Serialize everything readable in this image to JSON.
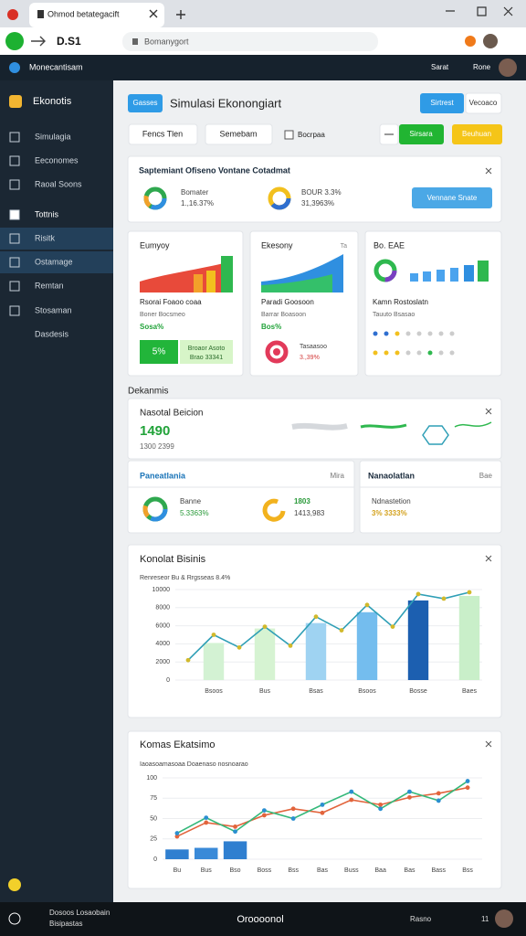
{
  "browser": {
    "tab_title": "Ohmod betategacift",
    "nav_label": "D.S1",
    "address": "Bomanygort"
  },
  "app_header": {
    "brand": "Monecantisam",
    "user_actions": [
      "Sarat",
      "Rone"
    ]
  },
  "sidebar": {
    "title": "Ekonotis",
    "items": [
      "Simulagia",
      "Eeconomes",
      "Raoal Soons",
      "Tottnis",
      "Risitk",
      "Ostamage",
      "Remtan",
      "Stosaman",
      "Dasdesis"
    ]
  },
  "page_header": {
    "badge": "Gasses",
    "title": "Simulasi Ekonongiart",
    "actions": [
      "Sirtrest",
      "Vecoaco"
    ]
  },
  "toolbar": {
    "buttons": [
      "Fencs Tlen",
      "Semebam"
    ],
    "checkbox": "Bocrpaa",
    "primary": "Sirsara",
    "secondary": "Beuhuan"
  },
  "summary_card": {
    "title": "Saptemiant Ofiseno Vontane Cotadmat",
    "items": [
      {
        "label": "Bomater",
        "value": "1.,16.37%"
      },
      {
        "label": "BOUR 3.3%",
        "value": "31,3963%"
      }
    ],
    "button": "Vennane Snate"
  },
  "mini_cards": [
    {
      "title": "Eumyoy",
      "lines": [
        "Rsorai Foaoo coaa",
        "Boner Bocsmeo",
        "Sosa%"
      ],
      "badge": "5%",
      "note": [
        "Broaor Asoto",
        "Brao 33341"
      ]
    },
    {
      "title": "Ekesony",
      "tag": "Ta",
      "lines": [
        "Paradi Goosoon",
        "Barrar Boasoon",
        "Bos%"
      ],
      "note": [
        "Tasaasoo",
        "3.,39%"
      ]
    },
    {
      "title": "Bo. EAE",
      "lines": [
        "Kamn Rostoslatn",
        "Tauuto Bsasao"
      ]
    }
  ],
  "section_label": "Dekanmis",
  "stat_card": {
    "title": "Nasotal Beicion",
    "value": "1490",
    "sub": "1300 2399"
  },
  "split_cards": [
    {
      "title": "Paneatlania",
      "tag": "Mira",
      "items": [
        {
          "label": "Banne",
          "value": "5.3363%"
        },
        {
          "label": "1803",
          "value": "1413,983"
        }
      ]
    },
    {
      "title": "Nanaolatlan",
      "tag": "Bae",
      "items": [
        {
          "label": "Ndnastetion",
          "value": "3% 3333%"
        }
      ]
    }
  ],
  "chart_data": [
    {
      "type": "bar",
      "title": "Konolat Bisinis",
      "subtitle": "Renreseor Bu & Rrgsseas 8.4%",
      "categories": [
        null,
        "Bsoos",
        null,
        "Bus",
        null,
        "Bsas",
        null,
        "Bsoos",
        null,
        "Bosse",
        null,
        "Baes"
      ],
      "series": [
        {
          "kind": "bar",
          "colors": [
            null,
            "#d3f2d3",
            null,
            "#d6f3d2",
            null,
            "#9fd3f2",
            null,
            "#74bdee",
            null,
            "#1c5fb0",
            null,
            "#c9efc9"
          ],
          "values": [
            null,
            4100,
            null,
            5700,
            null,
            6300,
            null,
            7500,
            null,
            8800,
            null,
            9300
          ]
        },
        {
          "kind": "line",
          "color": "#2f9fb6",
          "marker_color": "#d1b92b",
          "values": [
            2200,
            5000,
            3600,
            5900,
            3800,
            7000,
            5500,
            8300,
            5900,
            9500,
            9000,
            9700
          ]
        }
      ],
      "ylim": [
        0,
        10000
      ],
      "yticks": [
        0,
        2000,
        4000,
        6000,
        8000,
        10000
      ],
      "grid": true
    },
    {
      "type": "line",
      "title": "Komas Ekatsimo",
      "subtitle": "Iaoasoamasoaa Doaenaso nosnoarao",
      "categories": [
        "Bu",
        "Bus",
        "Bso",
        "Boss",
        "Bss",
        "Bas",
        "Buss",
        "Baa",
        "Bas",
        "Bass",
        "Bss"
      ],
      "series": [
        {
          "kind": "bar",
          "colors": [
            "#2f7fd0",
            "#3a8ad8",
            "#2f7fd0",
            null,
            null,
            null,
            null,
            null,
            null,
            null,
            null
          ],
          "values": [
            12,
            14,
            22,
            null,
            null,
            null,
            null,
            null,
            null,
            null,
            null
          ]
        },
        {
          "kind": "line",
          "color": "#e2643c",
          "marker_color": "#e2643c",
          "values": [
            28,
            45,
            40,
            54,
            62,
            57,
            73,
            67,
            76,
            81,
            88
          ]
        },
        {
          "kind": "line",
          "color": "#34b87a",
          "marker_color": "#2a8fd0",
          "values": [
            32,
            51,
            34,
            60,
            50,
            67,
            83,
            62,
            83,
            72,
            96
          ]
        }
      ],
      "ylim": [
        0,
        100
      ],
      "yticks": [
        0,
        25,
        50,
        75,
        100
      ],
      "grid": true
    }
  ],
  "footer": {
    "left": [
      "Dosoos Losaobain",
      "Bisipastas"
    ],
    "center": "Oroooonol",
    "right": [
      "Rasno",
      "11"
    ]
  }
}
